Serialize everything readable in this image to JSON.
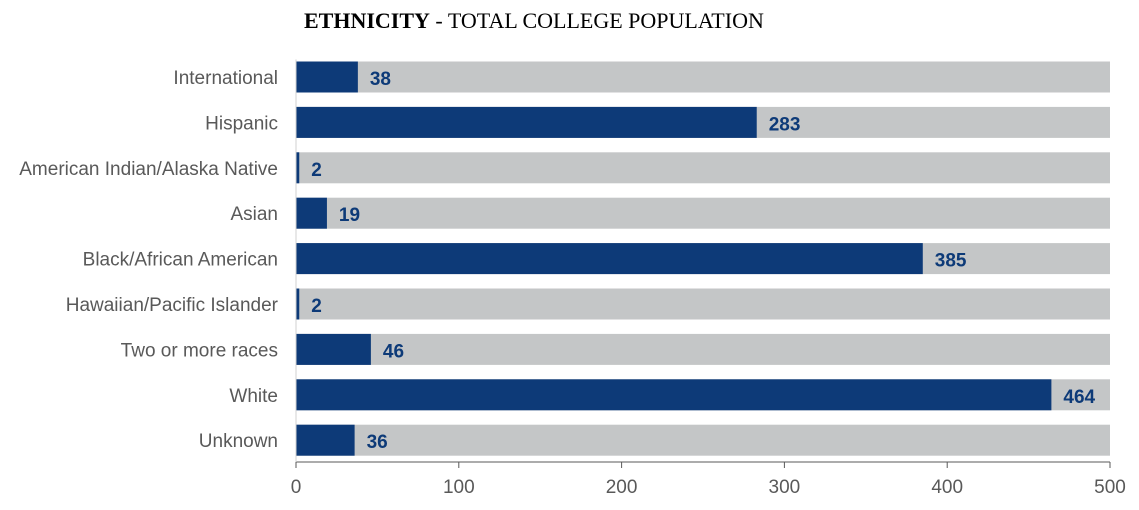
{
  "title": {
    "bold": "ETHNICITY",
    "rest": " - TOTAL COLLEGE POPULATION"
  },
  "colors": {
    "bar": "#0d3a78",
    "track": "#c4c6c7",
    "value_label": "#0d3a78",
    "category_label": "#595959",
    "axis": "#595959"
  },
  "chart_data": {
    "type": "bar",
    "orientation": "horizontal",
    "title": "ETHNICITY - TOTAL COLLEGE POPULATION",
    "categories": [
      "International",
      "Hispanic",
      "American Indian/Alaska Native",
      "Asian",
      "Black/African American",
      "Hawaiian/Pacific Islander",
      "Two or more races",
      "White",
      "Unknown"
    ],
    "values": [
      38,
      283,
      2,
      19,
      385,
      2,
      46,
      464,
      36
    ],
    "data_labels": [
      "38",
      "283",
      "2",
      "19",
      "385",
      "2",
      "46",
      "464",
      "36"
    ],
    "xlim": [
      0,
      500
    ],
    "xticks": [
      "0",
      "100",
      "200",
      "300",
      "400",
      "500"
    ],
    "background_track": true,
    "grid": false,
    "legend": "none"
  }
}
